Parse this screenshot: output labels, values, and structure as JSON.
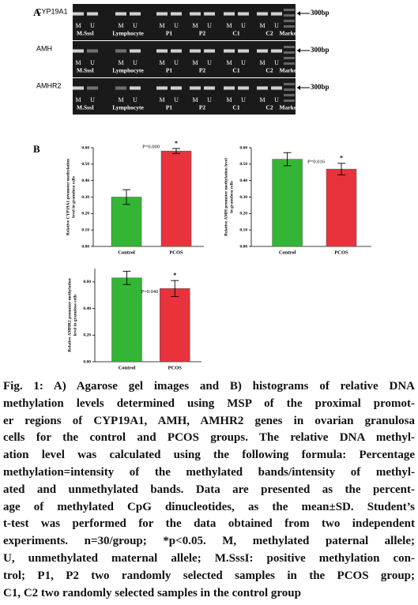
{
  "panel_a": {
    "label": "A",
    "gels": [
      {
        "gene": "CYP19A1",
        "size": "300bp"
      },
      {
        "gene": "AMH",
        "size": "300bp"
      },
      {
        "gene": "AMHR2",
        "size": "300bp"
      }
    ],
    "allele_labels": [
      "M",
      "U"
    ],
    "lanes": [
      "M.SssI",
      "Lymphocyte",
      "P1",
      "P2",
      "C1",
      "C2",
      "Marker"
    ]
  },
  "panel_b": {
    "label": "B"
  },
  "charts": [
    {
      "type": "bar",
      "ylabel": [
        "Relative CYP19A1 promoter methylation",
        "level in granulosa cells"
      ],
      "categories": [
        "Control",
        "PCOS"
      ],
      "values": [
        0.3,
        0.58
      ],
      "errors": [
        0.045,
        0.015
      ],
      "colors": [
        "#35b535",
        "#e8323c"
      ],
      "ylim": [
        0,
        0.6
      ],
      "yticks": [
        {
          "value": 0,
          "label": "0.00"
        },
        {
          "value": 0.1,
          "label": "0.10"
        },
        {
          "value": 0.2,
          "label": "0.20"
        },
        {
          "value": 0.3,
          "label": "0.30"
        },
        {
          "value": 0.4,
          "label": "0.40"
        },
        {
          "value": 0.5,
          "label": "0.50"
        },
        {
          "value": 0.6,
          "label": "0.60"
        }
      ],
      "p_value": "P=0.000",
      "significance": "*"
    },
    {
      "type": "bar",
      "ylabel": [
        "Relative AMH promoter methylation level",
        "in granulosa cells"
      ],
      "categories": [
        "Control",
        "PCOS"
      ],
      "values": [
        0.53,
        0.47
      ],
      "errors": [
        0.04,
        0.035
      ],
      "colors": [
        "#35b535",
        "#e8323c"
      ],
      "ylim": [
        0,
        0.6
      ],
      "yticks": [
        {
          "value": 0,
          "label": "0.00"
        },
        {
          "value": 0.1,
          "label": "0.10"
        },
        {
          "value": 0.2,
          "label": "0.20"
        },
        {
          "value": 0.3,
          "label": "0.30"
        },
        {
          "value": 0.4,
          "label": "0.40"
        },
        {
          "value": 0.5,
          "label": "0.50"
        },
        {
          "value": 0.6,
          "label": "0.60"
        }
      ],
      "p_value": "P=0.016",
      "significance": "*"
    },
    {
      "type": "bar",
      "ylabel": [
        "Relative AMHR2 promoter methylation",
        "level in granulosa cells"
      ],
      "categories": [
        "Control",
        "PCOS"
      ],
      "values": [
        0.63,
        0.55
      ],
      "errors": [
        0.05,
        0.06
      ],
      "colors": [
        "#35b535",
        "#e8323c"
      ],
      "ylim": [
        0,
        0.7
      ],
      "yticks": [
        {
          "value": 0,
          "label": "0.00"
        },
        {
          "value": 0.2,
          "label": "0.20"
        },
        {
          "value": 0.4,
          "label": "0.40"
        },
        {
          "value": 0.6,
          "label": "0.60"
        }
      ],
      "p_value": "P=0.040",
      "significance": "*"
    }
  ],
  "caption": [
    "Fig. 1: A) Agarose gel images and B) histograms of relative DNA",
    "methylation levels determined using MSP of the proximal promot-",
    "er regions of CYP19A1, AMH, AMHR2 genes in ovarian granulosa",
    "cells for the control and PCOS groups. The relative DNA methyl-",
    "ation level was calculated using the following formula: Percentage",
    "methylation=intensity of the methylated bands/intensity of methyl-",
    "ated and unmethylated bands. Data are presented as the percent-",
    "age of methylated CpG dinucleotides, as the mean±SD.  Student’s",
    "t-test was performed for the data obtained from two independent",
    "experiments. n=30/group; *p<0.05. M, methylated paternal allele;",
    "U, unmethylated maternal allele; M.SssI: positive methylation con-",
    "trol; P1, P2 two randomly selected samples in the PCOS group;",
    "C1, C2 two randomly selected samples in the control group"
  ]
}
